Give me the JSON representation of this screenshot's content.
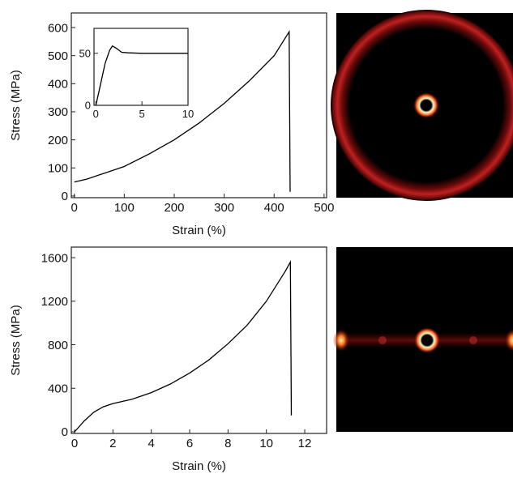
{
  "chart_data": [
    {
      "type": "line",
      "x_label": "Strain (%)",
      "y_label": "Stress (MPa)",
      "color": "#000000",
      "x": [
        0,
        25,
        50,
        100,
        150,
        200,
        250,
        300,
        350,
        400,
        430,
        432
      ],
      "values": [
        50,
        60,
        75,
        105,
        150,
        200,
        260,
        330,
        410,
        500,
        585,
        15
      ],
      "xlim": [
        -6,
        505
      ],
      "ylim": [
        -6,
        652
      ],
      "xticks": [
        0,
        100,
        200,
        300,
        400,
        500
      ],
      "yticks": [
        0,
        100,
        200,
        300,
        400,
        500,
        600
      ]
    },
    {
      "type": "line",
      "color": "#000000",
      "x": [
        0,
        0.5,
        1,
        1.5,
        1.8,
        2.2,
        2.8,
        3.5,
        5,
        7,
        10
      ],
      "values": [
        0,
        20,
        40,
        53,
        57,
        55,
        51,
        50.5,
        50,
        50,
        50
      ],
      "xlim": [
        -0.2,
        10
      ],
      "ylim": [
        0,
        74
      ],
      "xticks": [
        0,
        5,
        10
      ],
      "yticks": [
        0,
        50
      ]
    },
    {
      "type": "line",
      "x_label": "Strain (%)",
      "y_label": "Stress (MPa)",
      "color": "#000000",
      "x": [
        0,
        0.5,
        1,
        1.5,
        2,
        3,
        4,
        5,
        6,
        7,
        8,
        9,
        10,
        11,
        11.25,
        11.3
      ],
      "values": [
        0,
        100,
        180,
        230,
        260,
        300,
        360,
        440,
        540,
        660,
        810,
        980,
        1200,
        1480,
        1560,
        150
      ],
      "xlim": [
        -0.17,
        13.14
      ],
      "ylim": [
        -15,
        1697
      ],
      "xticks": [
        0,
        2,
        4,
        6,
        8,
        10,
        12
      ],
      "yticks": [
        0,
        400,
        800,
        1200,
        1600
      ]
    }
  ]
}
